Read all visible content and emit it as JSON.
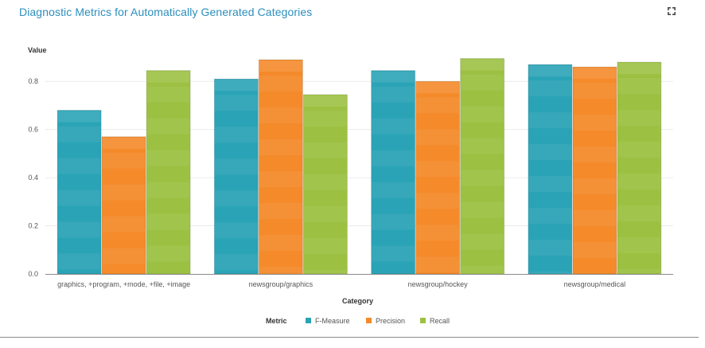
{
  "header": {
    "title": "Diagnostic Metrics for Automatically Generated Categories"
  },
  "icons": {
    "expand": "expand-icon"
  },
  "colors": {
    "F-Measure": "#2aa3b6",
    "Precision": "#f48a2a",
    "Recall": "#9cc142"
  },
  "chart_data": {
    "type": "bar",
    "title": "Diagnostic Metrics for Automatically Generated Categories",
    "xlabel": "Category",
    "ylabel": "Value",
    "ylim": [
      0,
      0.9
    ],
    "yticks": [
      0.0,
      0.2,
      0.4,
      0.6,
      0.8
    ],
    "ytick_labels": [
      "0.0",
      "0.2",
      "0.4",
      "0.6",
      "0.8"
    ],
    "grid": true,
    "legend": {
      "title": "Metric",
      "placement": "bottom-center"
    },
    "categories": [
      "graphics, +program, +mode, +file, +image",
      "newsgroup/graphics",
      "newsgroup/hockey",
      "newsgroup/medical"
    ],
    "series": [
      {
        "name": "F-Measure",
        "values": [
          0.68,
          0.81,
          0.845,
          0.87
        ]
      },
      {
        "name": "Precision",
        "values": [
          0.57,
          0.89,
          0.8,
          0.86
        ]
      },
      {
        "name": "Recall",
        "values": [
          0.845,
          0.745,
          0.895,
          0.88
        ]
      }
    ]
  }
}
